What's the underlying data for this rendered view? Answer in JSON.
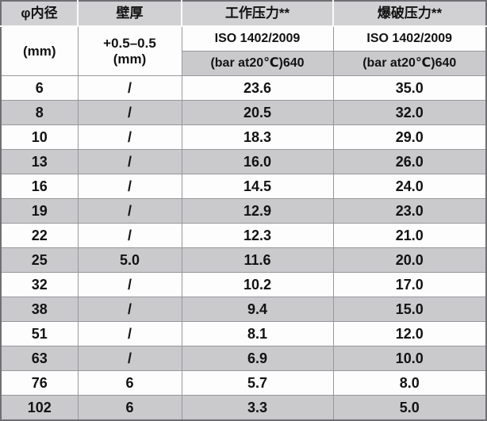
{
  "table": {
    "name": "hose-pressure-specification-table",
    "columns": [
      {
        "header_title": "φ内径",
        "subheader": "(mm)"
      },
      {
        "header_title": "壁厚",
        "subheader_line1": "+0.5–0.5",
        "subheader_line2": "(mm)"
      },
      {
        "header_title": "工作压力**",
        "standard": "ISO 1402/2009",
        "unit": "(bar at20℃)640"
      },
      {
        "header_title": "爆破压力**",
        "standard": "ISO 1402/2009",
        "unit": "(bar at20℃)640"
      }
    ],
    "rows": [
      [
        "6",
        "/",
        "23.6",
        "35.0"
      ],
      [
        "8",
        "/",
        "20.5",
        "32.0"
      ],
      [
        "10",
        "/",
        "18.3",
        "29.0"
      ],
      [
        "13",
        "/",
        "16.0",
        "26.0"
      ],
      [
        "16",
        "/",
        "14.5",
        "24.0"
      ],
      [
        "19",
        "/",
        "12.9",
        "23.0"
      ],
      [
        "22",
        "/",
        "12.3",
        "21.0"
      ],
      [
        "25",
        "5.0",
        "11.6",
        "20.0"
      ],
      [
        "32",
        "/",
        "10.2",
        "17.0"
      ],
      [
        "38",
        "/",
        "9.4",
        "15.0"
      ],
      [
        "51",
        "/",
        "8.1",
        "12.0"
      ],
      [
        "63",
        "/",
        "6.9",
        "10.0"
      ],
      [
        "76",
        "6",
        "5.7",
        "8.0"
      ],
      [
        "102",
        "6",
        "3.3",
        "5.0"
      ]
    ],
    "cell_names": [
      "inner-diameter-cell",
      "wall-thickness-cell",
      "working-pressure-cell",
      "burst-pressure-cell"
    ]
  },
  "colors": {
    "outer_border": "#707074",
    "grid_line": "#98989c",
    "row_gray": "#cacacd",
    "header_gray": "#d1d1d4",
    "cell_white": "#fdfdfd",
    "text": "#121212"
  }
}
